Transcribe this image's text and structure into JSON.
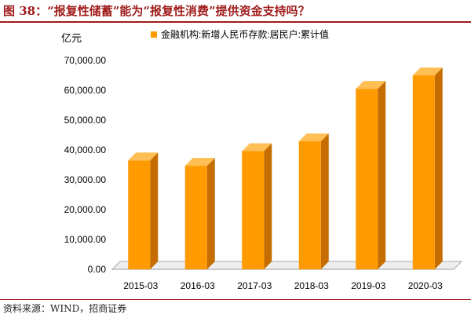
{
  "figure": {
    "title": "图 38：“报复性储蓄”能为“报复性消费”提供资金支持吗？",
    "source": "资料来源：WIND，招商证券"
  },
  "chart_data": {
    "type": "bar",
    "y_unit": "亿元",
    "categories": [
      "2015-03",
      "2016-03",
      "2017-03",
      "2018-03",
      "2019-03",
      "2020-03"
    ],
    "series": [
      {
        "name": "金融机构:新增人民币存款:居民户:累计值",
        "values": [
          36500,
          34700,
          39600,
          42900,
          60500,
          65000
        ],
        "color": "#ff9a00"
      }
    ],
    "ylim": [
      0,
      70000
    ],
    "yticks": [
      0,
      10000,
      20000,
      30000,
      40000,
      50000,
      60000,
      70000
    ],
    "ytick_labels": [
      "0.00",
      "10,000.00",
      "20,000.00",
      "30,000.00",
      "40,000.00",
      "50,000.00",
      "60,000.00",
      "70,000.00"
    ],
    "grid": false,
    "legend_position": "top",
    "style": "3d-bar"
  }
}
